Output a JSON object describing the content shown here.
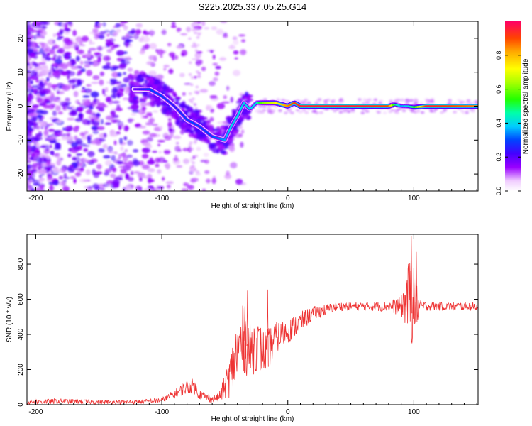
{
  "title": "S225.2025.337.05.25.G14",
  "chart_data": [
    {
      "type": "heatmap",
      "xlabel": "Height of straight line (km)",
      "ylabel": "Frequency (Hz)",
      "xlim": [
        -207,
        151
      ],
      "ylim": [
        -25,
        25
      ],
      "xticks": [
        -200,
        -100,
        0,
        100
      ],
      "yticks": [
        -20,
        -10,
        0,
        10,
        20
      ],
      "xtick_labels": [
        "-200",
        "-100",
        "0",
        "100"
      ],
      "ytick_labels": [
        "-20",
        "-10",
        "0",
        "10",
        "20"
      ],
      "colorbar_label": "Normalized spectral amplitude",
      "colorbar_range": [
        0,
        1
      ],
      "colorbar_ticks": [
        "0.0",
        "0.2",
        "0.4",
        "0.6",
        "0.8"
      ],
      "ridge": {
        "x": [
          -120,
          -110,
          -100,
          -90,
          -80,
          -70,
          -60,
          -50,
          -45,
          -40,
          -35,
          -30,
          -25,
          -20,
          -10,
          0,
          5,
          10,
          20,
          40,
          60,
          80,
          85,
          90,
          95,
          100,
          110,
          130,
          151
        ],
        "y": [
          5,
          5,
          3,
          0,
          -4,
          -6,
          -9,
          -10,
          -6,
          -3,
          1,
          -1,
          1,
          1,
          1,
          0,
          1,
          0,
          0,
          0,
          0,
          0,
          0.5,
          0,
          0,
          -0.3,
          0,
          0,
          0
        ],
        "amplitude": [
          0.2,
          0.3,
          0.3,
          0.25,
          0.3,
          0.3,
          0.3,
          0.35,
          0.4,
          0.4,
          0.4,
          0.4,
          0.4,
          0.6,
          0.7,
          0.85,
          0.9,
          0.95,
          0.95,
          0.95,
          0.95,
          0.9,
          0.5,
          0.35,
          0.4,
          0.5,
          0.95,
          0.9,
          0.85
        ]
      }
    },
    {
      "type": "line",
      "xlabel": "Height of straight line (km)",
      "ylabel": "SNR (10 * v/v)",
      "xlim": [
        -207,
        151
      ],
      "ylim": [
        0,
        970
      ],
      "xticks": [
        -200,
        -100,
        0,
        100
      ],
      "yticks": [
        0,
        200,
        400,
        600,
        800
      ],
      "xtick_labels": [
        "-200",
        "-100",
        "0",
        "100"
      ],
      "ytick_labels": [
        "0",
        "200",
        "400",
        "600",
        "800"
      ],
      "series": [
        {
          "name": "SNR",
          "color": "#ee3333",
          "x": [
            -207,
            -180,
            -150,
            -120,
            -100,
            -90,
            -80,
            -75,
            -70,
            -60,
            -55,
            -50,
            -45,
            -40,
            -35,
            -30,
            -25,
            -20,
            -15,
            -10,
            0,
            10,
            20,
            40,
            60,
            80,
            90,
            95,
            98,
            100,
            105,
            110,
            130,
            151
          ],
          "y": [
            15,
            20,
            15,
            15,
            25,
            60,
            100,
            110,
            60,
            30,
            40,
            100,
            180,
            300,
            380,
            300,
            350,
            300,
            320,
            380,
            420,
            470,
            520,
            560,
            560,
            560,
            560,
            600,
            620,
            580,
            560,
            560,
            560,
            560
          ],
          "noise": [
            15,
            15,
            12,
            12,
            15,
            25,
            40,
            45,
            30,
            20,
            25,
            70,
            140,
            200,
            200,
            160,
            160,
            130,
            120,
            90,
            70,
            60,
            40,
            25,
            25,
            30,
            60,
            180,
            300,
            200,
            40,
            25,
            25,
            25
          ]
        }
      ]
    }
  ]
}
